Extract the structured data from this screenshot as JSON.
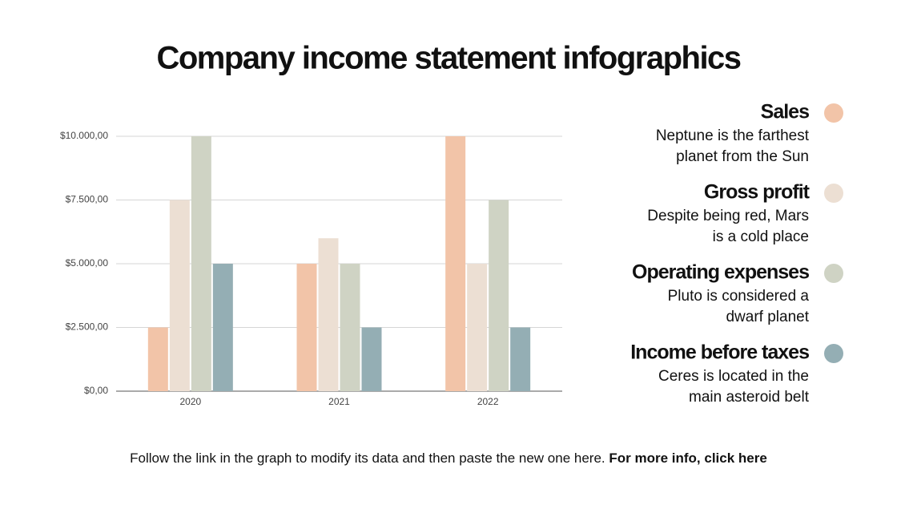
{
  "chart_data": {
    "type": "bar",
    "title": "Company income statement infographics",
    "categories": [
      "2020",
      "2021",
      "2022"
    ],
    "series": [
      {
        "name": "Sales",
        "color": "#f2c4a8",
        "values": [
          2500,
          5000,
          10000
        ],
        "description": [
          "Neptune is the farthest",
          "planet from the Sun"
        ]
      },
      {
        "name": "Gross profit",
        "color": "#ecdfd3",
        "values": [
          7500,
          6000,
          5000
        ],
        "description": [
          "Despite being red, Mars",
          "is a cold place"
        ]
      },
      {
        "name": "Operating expenses",
        "color": "#cfd3c4",
        "values": [
          10000,
          5000,
          7500
        ],
        "description": [
          "Pluto is considered a",
          "dwarf planet"
        ]
      },
      {
        "name": "Income before taxes",
        "color": "#94aeb4",
        "values": [
          5000,
          2500,
          2500
        ],
        "description": [
          "Ceres is located in the",
          "main asteroid belt"
        ]
      }
    ],
    "ylim": [
      0,
      10000
    ],
    "yticks": [
      {
        "value": 0,
        "label": "$0,00"
      },
      {
        "value": 2500,
        "label": "$2.500,00"
      },
      {
        "value": 5000,
        "label": "$5.000,00"
      },
      {
        "value": 7500,
        "label": "$7.500,00"
      },
      {
        "value": 10000,
        "label": "$10.000,00"
      }
    ],
    "grid": true,
    "legend": "right"
  },
  "footer": {
    "text": "Follow the link in the graph to modify its data and then paste the new one here.",
    "link": "For more info, click here"
  }
}
